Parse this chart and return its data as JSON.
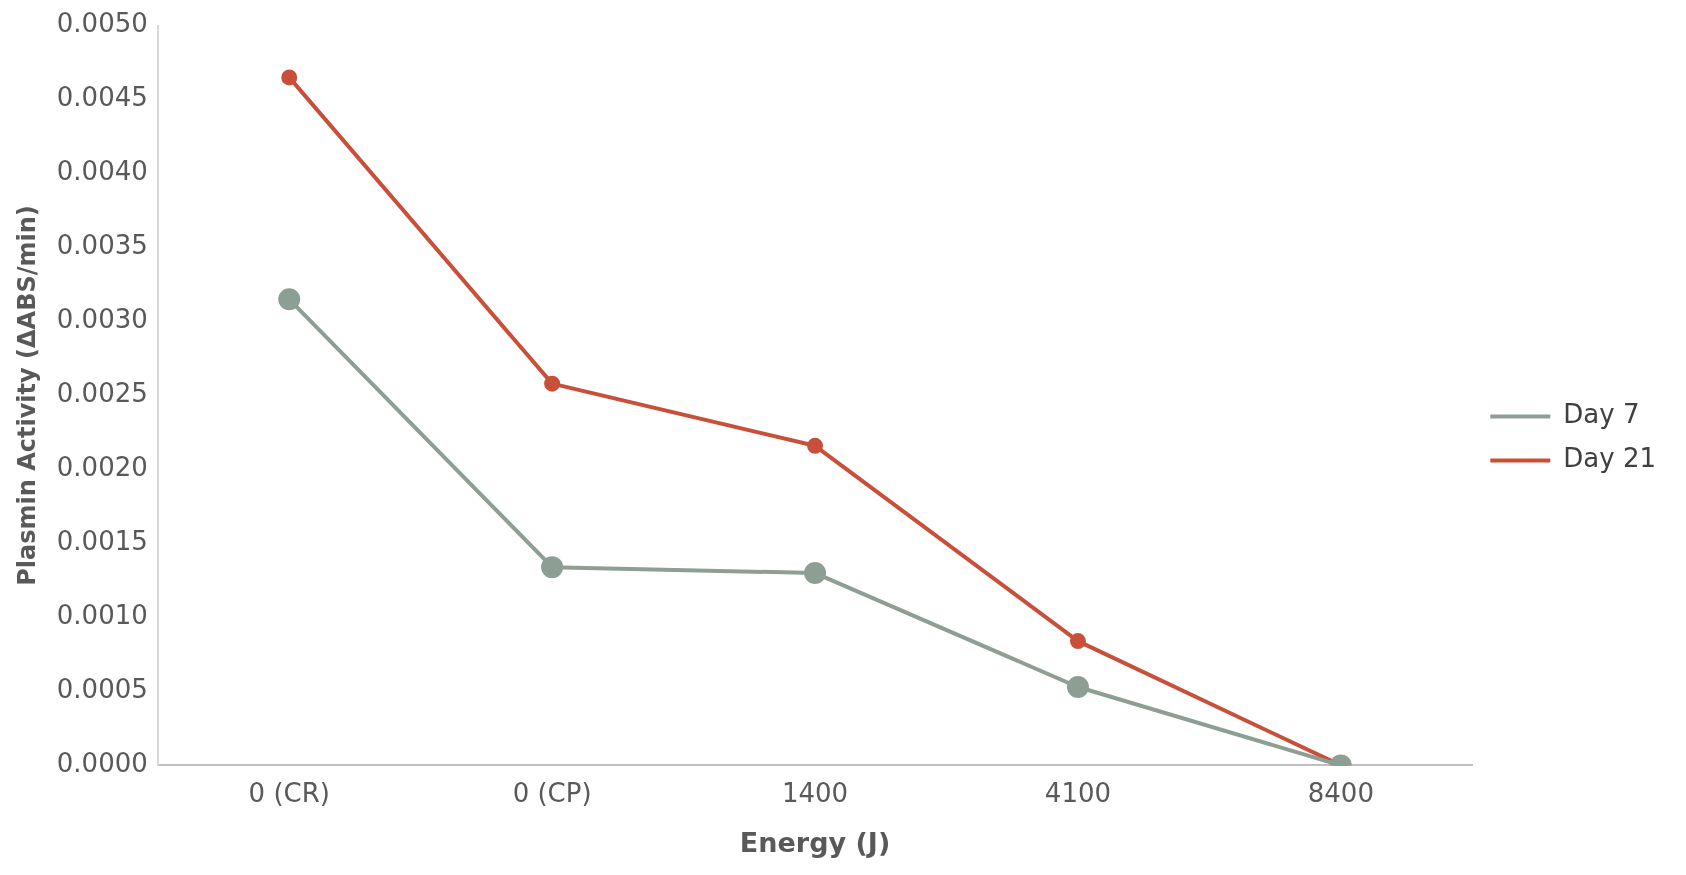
{
  "chart_data": {
    "type": "line",
    "xlabel": "Energy (J)",
    "ylabel": "Plasmin Activity (ΔABS/min)",
    "categories": [
      "0 (CR)",
      "0 (CP)",
      "1400",
      "4100",
      "8400"
    ],
    "series": [
      {
        "name": "Day 7",
        "color": "#8d9f94",
        "values": [
          0.00315,
          0.00134,
          0.0013,
          0.00053,
          0
        ]
      },
      {
        "name": "Day 21",
        "color": "#c8503a",
        "values": [
          0.00465,
          0.00258,
          0.00216,
          0.00084,
          0
        ]
      }
    ],
    "ylim": [
      0,
      0.005
    ],
    "yticks": [
      {
        "value": 0,
        "label": "0.0000"
      },
      {
        "value": 0.0005,
        "label": "0.0005"
      },
      {
        "value": 0.001,
        "label": "0.0010"
      },
      {
        "value": 0.0015,
        "label": "0.0015"
      },
      {
        "value": 0.002,
        "label": "0.0020"
      },
      {
        "value": 0.0025,
        "label": "0.0025"
      },
      {
        "value": 0.003,
        "label": "0.0030"
      },
      {
        "value": 0.0035,
        "label": "0.0035"
      },
      {
        "value": 0.004,
        "label": "0.0040"
      },
      {
        "value": 0.0045,
        "label": "0.0045"
      },
      {
        "value": 0.005,
        "label": "0.0050"
      }
    ],
    "grid": false,
    "legend": "right",
    "marker": "circle",
    "line_style": "solid"
  }
}
